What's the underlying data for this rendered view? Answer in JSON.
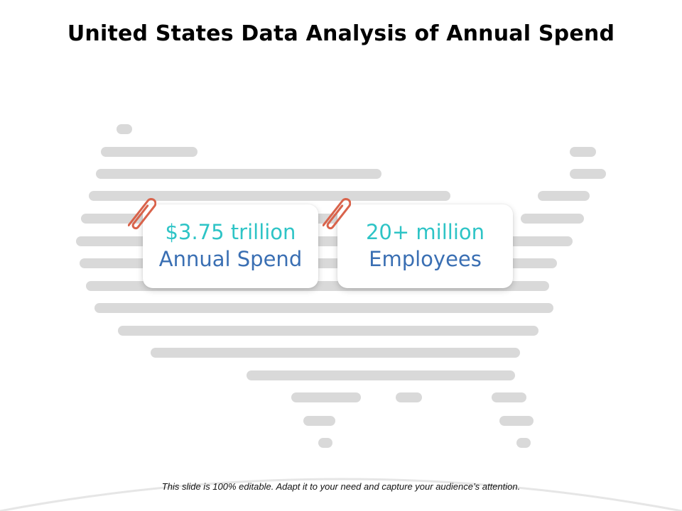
{
  "slide": {
    "title": "United States Data Analysis of Annual Spend",
    "footer": "This slide is 100% editable. Adapt it to your need and capture your audience’s attention."
  },
  "cards": [
    {
      "value": "$3.75 trillion",
      "label": "Annual Spend",
      "value_color": "#2ec4c6",
      "label_color": "#3a6fb3",
      "clip_icon": "paperclip-icon"
    },
    {
      "value": "20+ million",
      "label": "Employees",
      "value_color": "#2ec4c6",
      "label_color": "#3a6fb3",
      "clip_icon": "paperclip-icon"
    }
  ],
  "colors": {
    "map_bar": "#d9d9d9",
    "paperclip": "#d9634b",
    "title": "#000000"
  },
  "map_icon": "united-states-map-striped"
}
